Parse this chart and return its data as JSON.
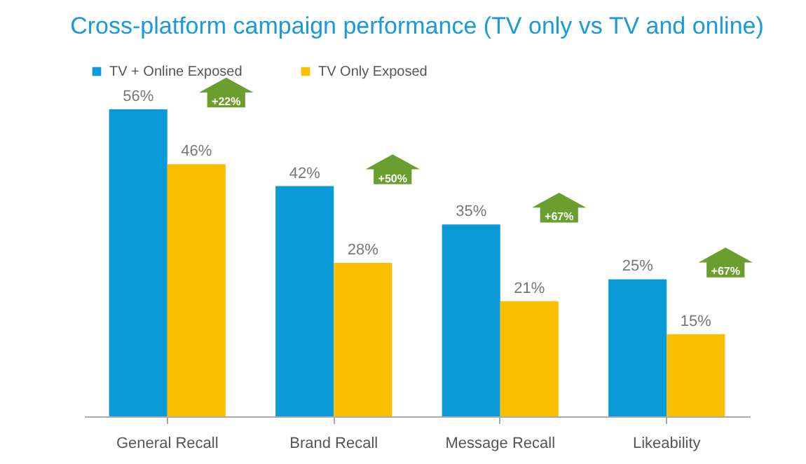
{
  "chart_data": {
    "type": "bar",
    "title": "Cross-platform campaign performance (TV only vs TV and online)",
    "categories": [
      "General Recall",
      "Brand Recall",
      "Message Recall",
      "Likeability"
    ],
    "series": [
      {
        "name": "TV + Online Exposed",
        "color": "#0a9ad7",
        "values": [
          56,
          42,
          35,
          25
        ],
        "value_labels": [
          "56%",
          "42%",
          "35%",
          "25%"
        ]
      },
      {
        "name": "TV Only Exposed",
        "color": "#fcbf00",
        "values": [
          46,
          28,
          21,
          15
        ],
        "value_labels": [
          "46%",
          "28%",
          "21%",
          "15%"
        ]
      }
    ],
    "tick_labels": "x",
    "legend": "top",
    "grid": false,
    "annotations": [
      "+22%",
      "+50%",
      "+67%",
      "+67%"
    ]
  }
}
